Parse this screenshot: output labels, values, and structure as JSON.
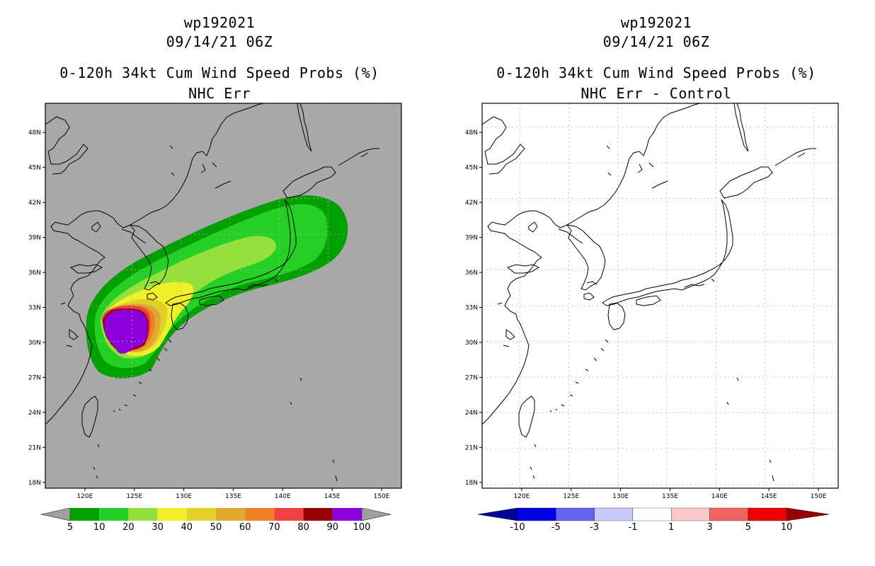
{
  "left": {
    "title_line1": "wp192021",
    "title_line2": "09/14/21 06Z",
    "title_line3": "0-120h 34kt Cum Wind Speed Probs (%)",
    "title_line4": "NHC Err",
    "background": "#a8a8a8",
    "colorbar": {
      "colors": [
        "#00a000",
        "#24d024",
        "#96e03c",
        "#f0f028",
        "#e0d028",
        "#e0a82c",
        "#f08028",
        "#f04040",
        "#960000",
        "#8c00dc"
      ],
      "labels": [
        "5",
        "10",
        "20",
        "30",
        "40",
        "50",
        "60",
        "70",
        "80",
        "90",
        "100"
      ],
      "end_color": "#a0a0a0"
    }
  },
  "right": {
    "title_line1": "wp192021",
    "title_line2": "09/14/21 06Z",
    "title_line3": "0-120h 34kt Cum Wind Speed Probs (%)",
    "title_line4": "NHC Err - Control",
    "background": "#ffffff",
    "colorbar": {
      "colors": [
        "#0000e6",
        "#6464f0",
        "#c8c8fa",
        "#ffffff",
        "#fac8c8",
        "#f06464",
        "#f00000"
      ],
      "labels": [
        "-10",
        "-5",
        "-3",
        "-1",
        "1",
        "3",
        "5",
        "10"
      ],
      "end_left": "#00009a",
      "end_right": "#960000"
    }
  },
  "chart_data": {
    "type": "heatmap",
    "title": "0-120h 34kt Cum Wind Speed Probs (%)",
    "storm": "wp192021",
    "valid": "09/14/21 06Z",
    "x_ticks": [
      "120E",
      "125E",
      "130E",
      "135E",
      "140E",
      "145E",
      "150E"
    ],
    "y_ticks": [
      "48N",
      "45N",
      "42N",
      "39N",
      "36N",
      "33N",
      "30N",
      "27N",
      "24N",
      "21N",
      "18N"
    ],
    "xlim": [
      116,
      152
    ],
    "ylim": [
      17.5,
      50.5
    ],
    "x_tick_values": [
      120,
      125,
      130,
      135,
      140,
      145,
      150
    ],
    "y_tick_values": [
      48,
      45,
      42,
      39,
      36,
      33,
      30,
      27,
      24,
      21,
      18
    ],
    "probability_peak_center": [
      124.5,
      30.8
    ],
    "probability_peak_value": 100,
    "swath_direction": "northeast toward northern Japan",
    "difference_panel": "all values between -1 and 1"
  }
}
